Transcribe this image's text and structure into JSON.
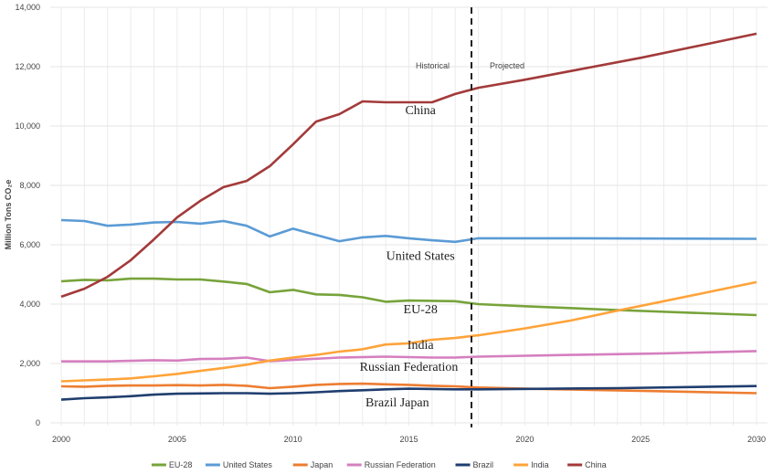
{
  "chart_data": {
    "type": "line",
    "title": "",
    "xlabel": "",
    "ylabel": "Million Tons CO₂e",
    "xlim": [
      2000,
      2030
    ],
    "ylim": [
      0,
      14000
    ],
    "x_ticks": [
      "2000",
      "2005",
      "2010",
      "2015",
      "2020",
      "2025",
      "2030"
    ],
    "y_ticks": [
      "0",
      "2,000",
      "4,000",
      "6,000",
      "8,000",
      "10,000",
      "12,000",
      "14,000"
    ],
    "grid": true,
    "legend_placement": "bottom",
    "divider": {
      "year": 2017.7,
      "style": "dashed",
      "left_label": "Historical",
      "right_label": "Projected"
    },
    "annotations": [
      {
        "text": "China",
        "year": 2015.5,
        "value": 10400
      },
      {
        "text": "United States",
        "year": 2015.5,
        "value": 5500
      },
      {
        "text": "EU-28",
        "year": 2015.5,
        "value": 3700
      },
      {
        "text": "India",
        "year": 2015.5,
        "value": 2500
      },
      {
        "text": "Russian Federation",
        "year": 2015,
        "value": 1750
      },
      {
        "text": "Brazil Japan",
        "year": 2014.5,
        "value": 550
      }
    ],
    "series": [
      {
        "name": "EU-28",
        "color": "#77a33a",
        "points": [
          [
            2000,
            4770
          ],
          [
            2001,
            4820
          ],
          [
            2002,
            4800
          ],
          [
            2003,
            4860
          ],
          [
            2004,
            4860
          ],
          [
            2005,
            4830
          ],
          [
            2006,
            4830
          ],
          [
            2007,
            4760
          ],
          [
            2008,
            4680
          ],
          [
            2009,
            4400
          ],
          [
            2010,
            4480
          ],
          [
            2011,
            4330
          ],
          [
            2012,
            4310
          ],
          [
            2013,
            4230
          ],
          [
            2014,
            4080
          ],
          [
            2015,
            4120
          ],
          [
            2016,
            4110
          ],
          [
            2017,
            4100
          ],
          [
            2018,
            4000
          ],
          [
            2020,
            3930
          ],
          [
            2024,
            3800
          ],
          [
            2030,
            3630
          ]
        ]
      },
      {
        "name": "United States",
        "color": "#5b9bd5",
        "points": [
          [
            2000,
            6830
          ],
          [
            2001,
            6800
          ],
          [
            2002,
            6640
          ],
          [
            2003,
            6680
          ],
          [
            2004,
            6750
          ],
          [
            2005,
            6770
          ],
          [
            2006,
            6710
          ],
          [
            2007,
            6800
          ],
          [
            2008,
            6640
          ],
          [
            2009,
            6280
          ],
          [
            2010,
            6540
          ],
          [
            2011,
            6330
          ],
          [
            2012,
            6120
          ],
          [
            2013,
            6250
          ],
          [
            2014,
            6300
          ],
          [
            2015,
            6220
          ],
          [
            2016,
            6150
          ],
          [
            2017,
            6100
          ],
          [
            2018,
            6220
          ],
          [
            2022,
            6220
          ],
          [
            2030,
            6200
          ]
        ]
      },
      {
        "name": "Japan",
        "color": "#ed7d31",
        "points": [
          [
            2000,
            1230
          ],
          [
            2001,
            1220
          ],
          [
            2002,
            1250
          ],
          [
            2003,
            1260
          ],
          [
            2004,
            1260
          ],
          [
            2005,
            1270
          ],
          [
            2006,
            1260
          ],
          [
            2007,
            1280
          ],
          [
            2008,
            1250
          ],
          [
            2009,
            1170
          ],
          [
            2010,
            1220
          ],
          [
            2011,
            1280
          ],
          [
            2012,
            1310
          ],
          [
            2013,
            1320
          ],
          [
            2014,
            1300
          ],
          [
            2015,
            1280
          ],
          [
            2016,
            1250
          ],
          [
            2017,
            1230
          ],
          [
            2018,
            1190
          ],
          [
            2020,
            1150
          ],
          [
            2025,
            1080
          ],
          [
            2030,
            1000
          ]
        ]
      },
      {
        "name": "Russian Federation",
        "color": "#d57fbf",
        "points": [
          [
            2000,
            2070
          ],
          [
            2002,
            2070
          ],
          [
            2004,
            2110
          ],
          [
            2005,
            2100
          ],
          [
            2006,
            2150
          ],
          [
            2007,
            2160
          ],
          [
            2008,
            2200
          ],
          [
            2009,
            2080
          ],
          [
            2010,
            2120
          ],
          [
            2012,
            2200
          ],
          [
            2014,
            2230
          ],
          [
            2016,
            2200
          ],
          [
            2017,
            2200
          ],
          [
            2018,
            2230
          ],
          [
            2022,
            2290
          ],
          [
            2026,
            2340
          ],
          [
            2030,
            2420
          ]
        ]
      },
      {
        "name": "Brazil",
        "color": "#1f3e6e",
        "points": [
          [
            2000,
            780
          ],
          [
            2001,
            830
          ],
          [
            2002,
            860
          ],
          [
            2003,
            900
          ],
          [
            2004,
            950
          ],
          [
            2005,
            980
          ],
          [
            2006,
            990
          ],
          [
            2007,
            1000
          ],
          [
            2008,
            1000
          ],
          [
            2009,
            980
          ],
          [
            2010,
            1000
          ],
          [
            2011,
            1030
          ],
          [
            2012,
            1070
          ],
          [
            2013,
            1100
          ],
          [
            2014,
            1130
          ],
          [
            2015,
            1150
          ],
          [
            2016,
            1140
          ],
          [
            2017,
            1130
          ],
          [
            2018,
            1130
          ],
          [
            2024,
            1170
          ],
          [
            2030,
            1240
          ]
        ]
      },
      {
        "name": "India",
        "color": "#ffa33a",
        "points": [
          [
            2000,
            1400
          ],
          [
            2001,
            1430
          ],
          [
            2002,
            1460
          ],
          [
            2003,
            1500
          ],
          [
            2004,
            1570
          ],
          [
            2005,
            1650
          ],
          [
            2006,
            1750
          ],
          [
            2007,
            1850
          ],
          [
            2008,
            1960
          ],
          [
            2009,
            2100
          ],
          [
            2010,
            2200
          ],
          [
            2011,
            2290
          ],
          [
            2012,
            2400
          ],
          [
            2013,
            2480
          ],
          [
            2014,
            2640
          ],
          [
            2015,
            2680
          ],
          [
            2016,
            2800
          ],
          [
            2017,
            2860
          ],
          [
            2018,
            2950
          ],
          [
            2020,
            3180
          ],
          [
            2022,
            3450
          ],
          [
            2024,
            3780
          ],
          [
            2026,
            4100
          ],
          [
            2028,
            4420
          ],
          [
            2030,
            4740
          ]
        ]
      },
      {
        "name": "China",
        "color": "#a33a3a",
        "points": [
          [
            2000,
            4250
          ],
          [
            2001,
            4520
          ],
          [
            2002,
            4920
          ],
          [
            2003,
            5480
          ],
          [
            2004,
            6180
          ],
          [
            2005,
            6920
          ],
          [
            2006,
            7480
          ],
          [
            2007,
            7940
          ],
          [
            2008,
            8150
          ],
          [
            2009,
            8650
          ],
          [
            2010,
            9380
          ],
          [
            2011,
            10150
          ],
          [
            2012,
            10400
          ],
          [
            2013,
            10830
          ],
          [
            2014,
            10800
          ],
          [
            2015,
            10800
          ],
          [
            2016,
            10800
          ],
          [
            2017,
            11080
          ],
          [
            2018,
            11290
          ],
          [
            2020,
            11560
          ],
          [
            2025,
            12300
          ],
          [
            2030,
            13110
          ]
        ]
      }
    ]
  }
}
